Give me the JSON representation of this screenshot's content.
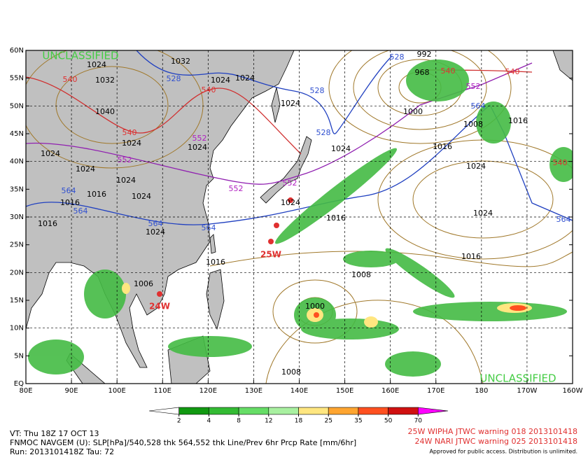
{
  "map": {
    "classification_top": "UNCLASSIFIED",
    "classification_bottom": "UNCLASSIFIED",
    "lat_labels": [
      "60N",
      "55N",
      "50N",
      "45N",
      "40N",
      "35N",
      "30N",
      "25N",
      "20N",
      "15N",
      "10N",
      "5N",
      "EQ"
    ],
    "lon_labels": [
      "80E",
      "90E",
      "100E",
      "110E",
      "120E",
      "130E",
      "140E",
      "150E",
      "160E",
      "170E",
      "180",
      "170W",
      "160W"
    ],
    "storm_labels": [
      "25W",
      "24W"
    ],
    "contour_labels": [
      {
        "text": "1024",
        "color": "#000000"
      },
      {
        "text": "1032",
        "color": "#000000"
      },
      {
        "text": "1032",
        "color": "#000000"
      },
      {
        "text": "1024",
        "color": "#000000"
      },
      {
        "text": "1024",
        "color": "#000000"
      },
      {
        "text": "1024",
        "color": "#000000"
      },
      {
        "text": "1040",
        "color": "#000000"
      },
      {
        "text": "1024",
        "color": "#000000"
      },
      {
        "text": "1024",
        "color": "#000000"
      },
      {
        "text": "1024",
        "color": "#000000"
      },
      {
        "text": "1024",
        "color": "#000000"
      },
      {
        "text": "1024",
        "color": "#000000"
      },
      {
        "text": "1016",
        "color": "#000000"
      },
      {
        "text": "1024",
        "color": "#000000"
      },
      {
        "text": "1016",
        "color": "#000000"
      },
      {
        "text": "1024",
        "color": "#000000"
      },
      {
        "text": "1016",
        "color": "#000000"
      },
      {
        "text": "1024",
        "color": "#000000"
      },
      {
        "text": "1024",
        "color": "#000000"
      },
      {
        "text": "1016",
        "color": "#000000"
      },
      {
        "text": "1016",
        "color": "#000000"
      },
      {
        "text": "1024",
        "color": "#000000"
      },
      {
        "text": "1024",
        "color": "#000000"
      },
      {
        "text": "1016",
        "color": "#000000"
      },
      {
        "text": "1008",
        "color": "#000000"
      },
      {
        "text": "1008",
        "color": "#000000"
      },
      {
        "text": "1000",
        "color": "#000000"
      },
      {
        "text": "1016",
        "color": "#000000"
      },
      {
        "text": "1000",
        "color": "#000000"
      },
      {
        "text": "1008",
        "color": "#000000"
      },
      {
        "text": "968",
        "color": "#000000"
      },
      {
        "text": "992",
        "color": "#000000"
      },
      {
        "text": "528",
        "color": "#3050d0"
      },
      {
        "text": "528",
        "color": "#3050d0"
      },
      {
        "text": "528",
        "color": "#3050d0"
      },
      {
        "text": "528",
        "color": "#3050d0"
      },
      {
        "text": "564",
        "color": "#3050d0"
      },
      {
        "text": "564",
        "color": "#3050d0"
      },
      {
        "text": "564",
        "color": "#3050d0"
      },
      {
        "text": "564",
        "color": "#3050d0"
      },
      {
        "text": "564",
        "color": "#3050d0"
      },
      {
        "text": "564",
        "color": "#3050d0"
      },
      {
        "text": "540",
        "color": "#e03030"
      },
      {
        "text": "540",
        "color": "#e03030"
      },
      {
        "text": "540",
        "color": "#e03030"
      },
      {
        "text": "540",
        "color": "#e03030"
      },
      {
        "text": "540",
        "color": "#e03030"
      },
      {
        "text": "540",
        "color": "#e03030"
      },
      {
        "text": "552",
        "color": "#b020c0"
      },
      {
        "text": "552",
        "color": "#b020c0"
      },
      {
        "text": "552",
        "color": "#b020c0"
      },
      {
        "text": "552",
        "color": "#b020c0"
      },
      {
        "text": "552",
        "color": "#b020c0"
      },
      {
        "text": "1006",
        "color": "#000000"
      },
      {
        "text": "1016",
        "color": "#000000"
      }
    ]
  },
  "colorbar": {
    "ticks": [
      2,
      4,
      8,
      12,
      18,
      25,
      35,
      50,
      70
    ],
    "colors": [
      "#ffffff",
      "#119911",
      "#33bb33",
      "#66dd66",
      "#a8f0a0",
      "#ffe680",
      "#ffa530",
      "#ff5020",
      "#d01010",
      "#900000",
      "#ff00ff"
    ]
  },
  "footer": {
    "valid_time": "VT: Thu 18Z 17 OCT 13",
    "description": "FNMOC NAVGEM (U): SLP[hPa]/540,528 thk 564,552 thk Line/Prev 6hr Prcp Rate [mm/6hr]",
    "run": "Run: 2013101418Z Tau: 72",
    "warnings": [
      "25W WIPHA JTWC warning 018 2013101418",
      "24W NARI JTWC warning 025 2013101418"
    ],
    "disclaimer": "Approved for public access. Distribution is unlimited."
  }
}
